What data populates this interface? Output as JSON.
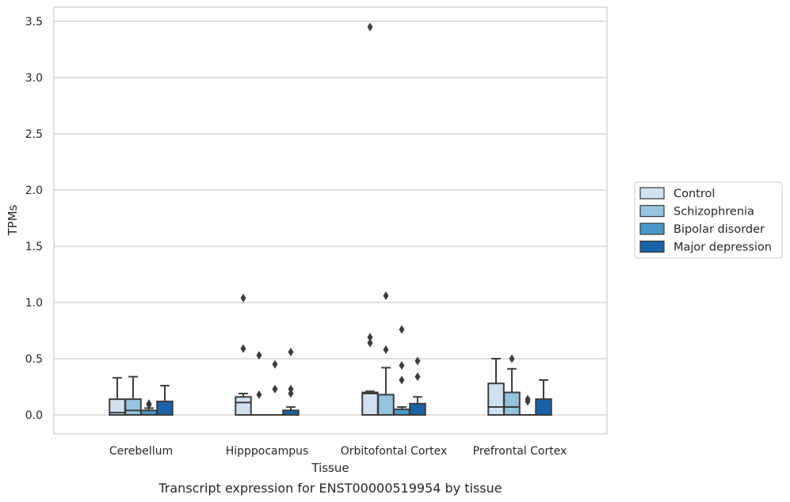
{
  "chart_data": {
    "type": "box",
    "caption": "Transcript expression for ENST00000519954 by tissue",
    "xlabel": "Tissue",
    "ylabel": "TPMs",
    "ylim": [
      -0.17,
      3.63
    ],
    "yticks": [
      "0.0",
      "0.5",
      "1.0",
      "1.5",
      "2.0",
      "2.5",
      "3.0",
      "3.5"
    ],
    "ytick_values": [
      0,
      0.5,
      1.0,
      1.5,
      2.0,
      2.5,
      3.0,
      3.5
    ],
    "grid": "horizontal",
    "legend_position": "right",
    "categories": [
      "Cerebellum",
      "Hipppocampus",
      "Orbitofontal Cortex",
      "Prefrontal Cortex"
    ],
    "series": [
      {
        "name": "Control",
        "color": "#d0e1f2",
        "boxes": [
          {
            "q1": 0.0,
            "median": 0.02,
            "q3": 0.14,
            "whisker_low": 0.0,
            "whisker_high": 0.33,
            "outliers": []
          },
          {
            "q1": 0.0,
            "median": 0.11,
            "q3": 0.16,
            "whisker_low": 0.0,
            "whisker_high": 0.19,
            "outliers": [
              0.59,
              1.04
            ]
          },
          {
            "q1": 0.0,
            "median": 0.19,
            "q3": 0.2,
            "whisker_low": 0.0,
            "whisker_high": 0.21,
            "outliers": [
              0.64,
              0.69,
              3.45
            ]
          },
          {
            "q1": 0.0,
            "median": 0.07,
            "q3": 0.28,
            "whisker_low": 0.0,
            "whisker_high": 0.5,
            "outliers": []
          }
        ]
      },
      {
        "name": "Schizophrenia",
        "color": "#94c4df",
        "boxes": [
          {
            "q1": 0.0,
            "median": 0.04,
            "q3": 0.14,
            "whisker_low": 0.0,
            "whisker_high": 0.34,
            "outliers": []
          },
          {
            "q1": 0.0,
            "median": 0.0,
            "q3": 0.0,
            "whisker_low": 0.0,
            "whisker_high": 0.0,
            "outliers": [
              0.18,
              0.53
            ]
          },
          {
            "q1": 0.0,
            "median": 0.0,
            "q3": 0.18,
            "whisker_low": 0.0,
            "whisker_high": 0.42,
            "outliers": [
              0.58,
              1.06
            ]
          },
          {
            "q1": 0.0,
            "median": 0.07,
            "q3": 0.2,
            "whisker_low": 0.0,
            "whisker_high": 0.41,
            "outliers": [
              0.5
            ]
          }
        ]
      },
      {
        "name": "Bipolar disorder",
        "color": "#4a98c9",
        "boxes": [
          {
            "q1": 0.0,
            "median": 0.0,
            "q3": 0.04,
            "whisker_low": 0.0,
            "whisker_high": 0.06,
            "outliers": [
              0.09,
              0.1
            ]
          },
          {
            "q1": 0.0,
            "median": 0.0,
            "q3": 0.0,
            "whisker_low": 0.0,
            "whisker_high": 0.0,
            "outliers": [
              0.23,
              0.45
            ]
          },
          {
            "q1": 0.0,
            "median": 0.0,
            "q3": 0.05,
            "whisker_low": 0.0,
            "whisker_high": 0.07,
            "outliers": [
              0.31,
              0.44,
              0.76
            ]
          },
          {
            "q1": 0.0,
            "median": 0.0,
            "q3": 0.0,
            "whisker_low": 0.0,
            "whisker_high": 0.0,
            "outliers": [
              0.12,
              0.14
            ]
          }
        ]
      },
      {
        "name": "Major depression",
        "color": "#1764ab",
        "boxes": [
          {
            "q1": 0.0,
            "median": 0.0,
            "q3": 0.12,
            "whisker_low": 0.0,
            "whisker_high": 0.26,
            "outliers": []
          },
          {
            "q1": 0.0,
            "median": 0.0,
            "q3": 0.04,
            "whisker_low": 0.0,
            "whisker_high": 0.07,
            "outliers": [
              0.19,
              0.23,
              0.56
            ]
          },
          {
            "q1": 0.0,
            "median": 0.0,
            "q3": 0.1,
            "whisker_low": 0.0,
            "whisker_high": 0.16,
            "outliers": [
              0.34,
              0.48
            ]
          },
          {
            "q1": 0.0,
            "median": 0.0,
            "q3": 0.14,
            "whisker_low": 0.0,
            "whisker_high": 0.31,
            "outliers": []
          }
        ]
      }
    ]
  }
}
